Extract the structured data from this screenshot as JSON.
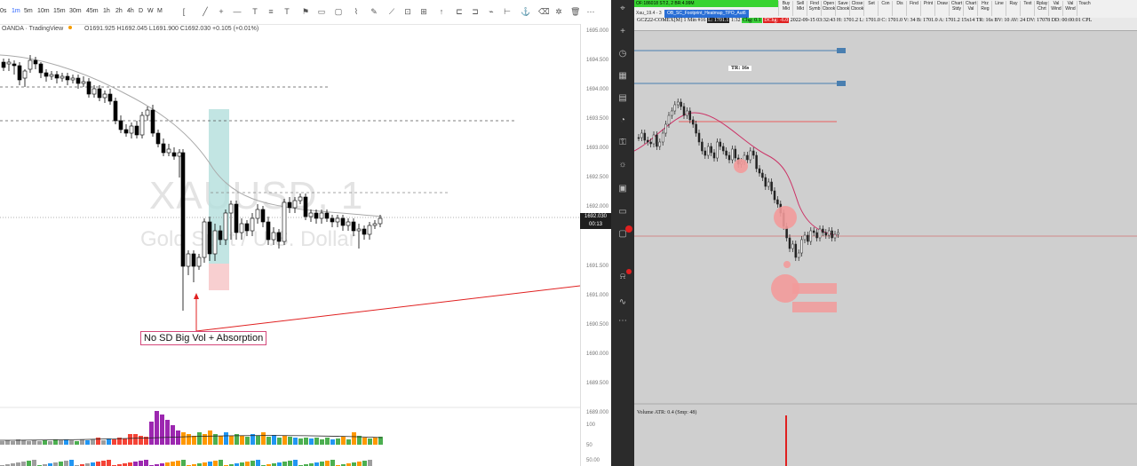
{
  "left_chart": {
    "timeframes": [
      "0s",
      "1m",
      "5m",
      "10m",
      "15m",
      "30m",
      "45m",
      "1h",
      "2h",
      "4h",
      "D",
      "W",
      "M"
    ],
    "active_timeframe": "1m",
    "source": "OANDA · TradingView",
    "ohlc": "O1691.925 H1692.045 L1691.900 C1692.030 +0.105 (+0.01%)",
    "watermark_symbol": "XAUUSD, 1",
    "watermark_name": "Gold Spot / U.S. Dollar",
    "price_ticks": [
      "1695.000",
      "1694.500",
      "1694.000",
      "1693.500",
      "1693.000",
      "1692.500",
      "1692.000",
      "1691.500",
      "1691.000",
      "1690.500",
      "1690.000",
      "1689.500",
      "1689.000"
    ],
    "volume_ticks": [
      "100",
      "50"
    ],
    "volume_bottom_tick": "50.00",
    "current_price": "1692.030",
    "countdown": "00:13",
    "annotation": "No SD Big Vol + Absorption"
  },
  "right_chart": {
    "greenbox_text": "OF:186018  ST:2, 2  BR:4.99M",
    "tab_left": "Xau_19.4 - 3",
    "chart_tab": "OB_SC_Footprint_Heatmap_TPO_Aut6",
    "toolbar": [
      "Buy Mkt",
      "Sell Mkt",
      "Find Symb",
      "Open Cbook",
      "Save Cbook",
      "Close Cbook",
      "Set",
      "Con",
      "Dis",
      "Find",
      "Print",
      "Draw",
      "Chart Stdy",
      "Chart Val",
      "Hrz Reg",
      "Line",
      "Ray",
      "Text",
      "Rplay Chrt",
      "Val Wind",
      "Val Wind",
      "Touch"
    ],
    "info_symbol": "GCZ22-COMEX[M]  1 Min  #16",
    "info_last": "L: 1701.1",
    "info_mid": "1:32",
    "info_chg": "Chg: 0.1",
    "info_dchg": "DChg: -6.0",
    "info_rest": "2022-09-15 03:32:43 H: 1701.2 L: 1701.0 C: 1701.0 V: 34 B: 1701.0 A: 1701.2 15x14 TR: 16s BV: 10 AV: 24 DV: 17078 DD: 00:00:01 CPL",
    "tr_label": "TR: 16s",
    "volume_label": "Volume  ATR: 0.4   (Smp: 48)"
  },
  "colors": {
    "up_candle": "#ffffff",
    "down_candle": "#000000",
    "zone_teal": "#b3dfdc",
    "zone_pink": "#f8cfd0",
    "vol_green": "#4caf50",
    "vol_orange": "#ff9800",
    "vol_purple": "#9c27b0",
    "vol_blue": "#2196f3",
    "vol_red": "#f44336",
    "arrow": "#e02020",
    "sc_bg": "#cfcfcf",
    "sc_blue_line": "#4a7fb0",
    "sc_ma": "#cc3366",
    "sc_bubble": "#f29a9a"
  }
}
